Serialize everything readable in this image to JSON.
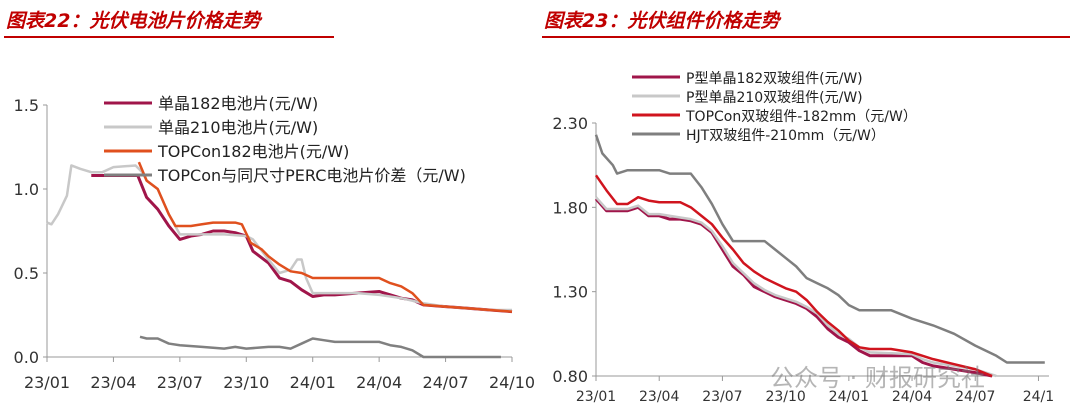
{
  "titles": [
    "图表22：光伏电池片价格走势",
    "图表23：光伏组件价格走势"
  ],
  "watermark": "公众号 · 财报研究社",
  "chart_data": [
    {
      "type": "line",
      "title": "图表22：光伏电池片价格走势",
      "xlabel": "",
      "ylabel": "",
      "x_unit": "months since 23/01",
      "xticks": [
        "23/01",
        "23/04",
        "23/07",
        "23/10",
        "24/01",
        "24/04",
        "24/07",
        "24/10"
      ],
      "xlim": [
        0,
        21
      ],
      "ylim": [
        0,
        1.5
      ],
      "yticks": [
        "0.0",
        "0.5",
        "1.0",
        "1.5"
      ],
      "legend": "top-right",
      "series": [
        {
          "name": "单晶182电池片(元/W)",
          "color": "#a0154a",
          "width": 3,
          "points": [
            [
              2,
              1.08
            ],
            [
              4.1,
              1.08
            ],
            [
              4.5,
              0.95
            ],
            [
              5,
              0.88
            ],
            [
              5.5,
              0.78
            ],
            [
              6,
              0.7
            ],
            [
              6.5,
              0.72
            ],
            [
              7,
              0.73
            ],
            [
              7.5,
              0.75
            ],
            [
              8,
              0.75
            ],
            [
              8.5,
              0.74
            ],
            [
              9,
              0.72
            ],
            [
              9.3,
              0.63
            ],
            [
              10,
              0.56
            ],
            [
              10.5,
              0.47
            ],
            [
              11,
              0.45
            ],
            [
              11.5,
              0.4
            ],
            [
              12,
              0.36
            ],
            [
              12.5,
              0.37
            ],
            [
              13,
              0.37
            ],
            [
              14,
              0.38
            ],
            [
              15,
              0.39
            ],
            [
              15.5,
              0.37
            ],
            [
              16,
              0.35
            ],
            [
              16.5,
              0.34
            ],
            [
              17,
              0.31
            ],
            [
              18,
              0.3
            ],
            [
              19,
              0.29
            ],
            [
              20,
              0.28
            ],
            [
              21,
              0.27
            ]
          ]
        },
        {
          "name": "单晶210电池片(元/W)",
          "color": "#c8c8c8",
          "width": 2.5,
          "points": [
            [
              0,
              0.8
            ],
            [
              0.2,
              0.79
            ],
            [
              0.5,
              0.85
            ],
            [
              0.9,
              0.96
            ],
            [
              1.1,
              1.14
            ],
            [
              1.5,
              1.12
            ],
            [
              2,
              1.1
            ],
            [
              2.5,
              1.1
            ],
            [
              3,
              1.13
            ],
            [
              4,
              1.14
            ],
            [
              4.3,
              1.1
            ],
            [
              4.5,
              1.05
            ],
            [
              5,
              1.0
            ],
            [
              5.5,
              0.85
            ],
            [
              6,
              0.73
            ],
            [
              7,
              0.73
            ],
            [
              8,
              0.73
            ],
            [
              9,
              0.72
            ],
            [
              9.3,
              0.7
            ],
            [
              10,
              0.58
            ],
            [
              10.5,
              0.5
            ],
            [
              11,
              0.52
            ],
            [
              11.3,
              0.58
            ],
            [
              11.5,
              0.58
            ],
            [
              11.7,
              0.47
            ],
            [
              12,
              0.38
            ],
            [
              13,
              0.38
            ],
            [
              14,
              0.38
            ],
            [
              15,
              0.37
            ],
            [
              16,
              0.35
            ],
            [
              17,
              0.32
            ],
            [
              18,
              0.3
            ],
            [
              19,
              0.29
            ],
            [
              20,
              0.28
            ],
            [
              21,
              0.28
            ]
          ]
        },
        {
          "name": "TOPCon182电池片(元/W)",
          "color": "#e0501e",
          "width": 2.5,
          "points": [
            [
              4.15,
              1.16
            ],
            [
              4.5,
              1.05
            ],
            [
              5,
              1.0
            ],
            [
              5.5,
              0.85
            ],
            [
              5.8,
              0.78
            ],
            [
              6.5,
              0.78
            ],
            [
              7,
              0.79
            ],
            [
              7.5,
              0.8
            ],
            [
              8,
              0.8
            ],
            [
              8.5,
              0.8
            ],
            [
              8.8,
              0.79
            ],
            [
              9.2,
              0.68
            ],
            [
              9.7,
              0.64
            ],
            [
              10,
              0.6
            ],
            [
              10.5,
              0.55
            ],
            [
              11,
              0.51
            ],
            [
              11.5,
              0.5
            ],
            [
              12,
              0.47
            ],
            [
              13,
              0.47
            ],
            [
              14,
              0.47
            ],
            [
              15,
              0.47
            ],
            [
              15.5,
              0.44
            ],
            [
              16,
              0.42
            ],
            [
              16.5,
              0.38
            ],
            [
              17,
              0.31
            ],
            [
              18,
              0.3
            ],
            [
              19,
              0.29
            ],
            [
              20,
              0.28
            ],
            [
              21,
              0.27
            ]
          ]
        },
        {
          "name": "TOPCon与同尺寸PERC电池片价差（元/W)",
          "color": "#808080",
          "width": 2.5,
          "points": [
            [
              4.2,
              0.12
            ],
            [
              4.5,
              0.11
            ],
            [
              5,
              0.11
            ],
            [
              5.5,
              0.08
            ],
            [
              6,
              0.07
            ],
            [
              7,
              0.06
            ],
            [
              8,
              0.05
            ],
            [
              8.5,
              0.06
            ],
            [
              9,
              0.05
            ],
            [
              10,
              0.06
            ],
            [
              10.5,
              0.06
            ],
            [
              11,
              0.05
            ],
            [
              11.5,
              0.08
            ],
            [
              12,
              0.11
            ],
            [
              12.5,
              0.1
            ],
            [
              13,
              0.09
            ],
            [
              14,
              0.09
            ],
            [
              15,
              0.09
            ],
            [
              15.5,
              0.07
            ],
            [
              16,
              0.06
            ],
            [
              16.5,
              0.04
            ],
            [
              17,
              0.0
            ],
            [
              18,
              0.0
            ],
            [
              19,
              0.0
            ],
            [
              20,
              0.0
            ],
            [
              20.5,
              0.0
            ]
          ]
        }
      ]
    },
    {
      "type": "line",
      "title": "图表23：光伏组件价格走势",
      "xlabel": "",
      "ylabel": "",
      "x_unit": "months since 23/01",
      "xticks": [
        "23/01",
        "23/04",
        "23/07",
        "23/10",
        "24/01",
        "24/04",
        "24/07",
        "24/1"
      ],
      "xlim": [
        0,
        21.5
      ],
      "ylim": [
        0.8,
        2.3
      ],
      "yticks": [
        "0.80",
        "1.30",
        "1.80",
        "2.30"
      ],
      "legend": "top-right",
      "series": [
        {
          "name": "P型单晶182双玻组件(元/W)",
          "color": "#a0154a",
          "width": 3,
          "points": [
            [
              0,
              1.85
            ],
            [
              0.5,
              1.78
            ],
            [
              1.5,
              1.78
            ],
            [
              2,
              1.8
            ],
            [
              2.5,
              1.75
            ],
            [
              3,
              1.75
            ],
            [
              3.5,
              1.73
            ],
            [
              4,
              1.73
            ],
            [
              4.5,
              1.72
            ],
            [
              5,
              1.7
            ],
            [
              5.5,
              1.65
            ],
            [
              6,
              1.55
            ],
            [
              6.5,
              1.45
            ],
            [
              7,
              1.4
            ],
            [
              7.5,
              1.33
            ],
            [
              8,
              1.3
            ],
            [
              8.5,
              1.27
            ],
            [
              9,
              1.25
            ],
            [
              9.5,
              1.23
            ],
            [
              10,
              1.2
            ],
            [
              10.5,
              1.15
            ],
            [
              11,
              1.08
            ],
            [
              11.5,
              1.03
            ],
            [
              12,
              1.0
            ],
            [
              12.5,
              0.95
            ],
            [
              13,
              0.92
            ],
            [
              15,
              0.92
            ],
            [
              15.5,
              0.88
            ],
            [
              16,
              0.86
            ],
            [
              17,
              0.84
            ],
            [
              18,
              0.82
            ],
            [
              18.8,
              0.8
            ]
          ]
        },
        {
          "name": "P型单晶210双玻组件(元/W)",
          "color": "#c8c8c8",
          "width": 2.5,
          "points": [
            [
              0,
              1.86
            ],
            [
              0.5,
              1.79
            ],
            [
              1.5,
              1.79
            ],
            [
              2,
              1.81
            ],
            [
              2.5,
              1.76
            ],
            [
              3,
              1.76
            ],
            [
              4,
              1.74
            ],
            [
              4.5,
              1.73
            ],
            [
              5,
              1.71
            ],
            [
              5.5,
              1.66
            ],
            [
              6,
              1.57
            ],
            [
              6.5,
              1.47
            ],
            [
              7,
              1.41
            ],
            [
              7.5,
              1.35
            ],
            [
              8,
              1.31
            ],
            [
              8.5,
              1.28
            ],
            [
              9,
              1.26
            ],
            [
              9.5,
              1.24
            ],
            [
              10,
              1.21
            ],
            [
              10.5,
              1.17
            ],
            [
              11,
              1.1
            ],
            [
              11.5,
              1.05
            ],
            [
              12,
              1.02
            ],
            [
              12.5,
              0.97
            ],
            [
              13,
              0.94
            ],
            [
              15,
              0.93
            ],
            [
              15.5,
              0.9
            ],
            [
              16,
              0.88
            ],
            [
              17,
              0.86
            ],
            [
              18,
              0.84
            ],
            [
              19,
              0.8
            ]
          ]
        },
        {
          "name": "TOPCon双玻组件-182mm（元/W）",
          "color": "#d0141e",
          "width": 2.5,
          "points": [
            [
              0,
              1.99
            ],
            [
              0.5,
              1.9
            ],
            [
              1,
              1.82
            ],
            [
              1.5,
              1.82
            ],
            [
              2,
              1.86
            ],
            [
              2.5,
              1.84
            ],
            [
              3,
              1.83
            ],
            [
              4,
              1.83
            ],
            [
              4.5,
              1.8
            ],
            [
              5,
              1.75
            ],
            [
              5.5,
              1.7
            ],
            [
              6,
              1.62
            ],
            [
              6.5,
              1.55
            ],
            [
              7,
              1.47
            ],
            [
              7.5,
              1.42
            ],
            [
              8,
              1.38
            ],
            [
              8.5,
              1.35
            ],
            [
              9,
              1.32
            ],
            [
              9.5,
              1.3
            ],
            [
              10,
              1.25
            ],
            [
              10.5,
              1.18
            ],
            [
              11,
              1.12
            ],
            [
              11.5,
              1.07
            ],
            [
              12,
              1.01
            ],
            [
              12.5,
              0.97
            ],
            [
              13,
              0.96
            ],
            [
              14,
              0.96
            ],
            [
              15,
              0.94
            ],
            [
              15.5,
              0.92
            ],
            [
              16,
              0.9
            ],
            [
              17,
              0.87
            ],
            [
              18,
              0.84
            ],
            [
              18.8,
              0.8
            ]
          ]
        },
        {
          "name": "HJT双玻组件-210mm（元/W）",
          "color": "#7f7f7f",
          "width": 2.5,
          "points": [
            [
              0,
              2.23
            ],
            [
              0.3,
              2.12
            ],
            [
              0.8,
              2.05
            ],
            [
              1,
              2.0
            ],
            [
              1.5,
              2.02
            ],
            [
              3,
              2.02
            ],
            [
              3.5,
              2.0
            ],
            [
              4.5,
              2.0
            ],
            [
              5,
              1.92
            ],
            [
              5.5,
              1.82
            ],
            [
              6,
              1.7
            ],
            [
              6.5,
              1.6
            ],
            [
              8,
              1.6
            ],
            [
              8.5,
              1.55
            ],
            [
              9,
              1.5
            ],
            [
              9.5,
              1.45
            ],
            [
              10,
              1.38
            ],
            [
              10.5,
              1.35
            ],
            [
              11,
              1.32
            ],
            [
              11.5,
              1.28
            ],
            [
              12,
              1.22
            ],
            [
              12.5,
              1.19
            ],
            [
              14,
              1.19
            ],
            [
              15,
              1.14
            ],
            [
              16,
              1.1
            ],
            [
              17,
              1.05
            ],
            [
              18,
              0.98
            ],
            [
              19,
              0.92
            ],
            [
              19.5,
              0.88
            ],
            [
              21.3,
              0.88
            ]
          ]
        }
      ]
    }
  ]
}
